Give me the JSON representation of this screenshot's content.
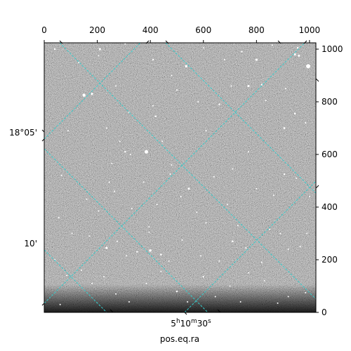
{
  "chart_data": {
    "type": "image",
    "image_description_type": "grayscale astronomical star field with celestial coordinate grid overlay",
    "pixel_axes": {
      "top": {
        "ticks": [
          0,
          200,
          400,
          600,
          800,
          1000
        ],
        "labels": [
          "0",
          "200",
          "400",
          "600",
          "800",
          "1000"
        ],
        "xlim": [
          0,
          1024
        ]
      },
      "right": {
        "ticks": [
          0,
          200,
          400,
          600,
          800,
          1000
        ],
        "labels": [
          "0",
          "200",
          "400",
          "600",
          "800",
          "1000"
        ],
        "ylim": [
          0,
          1024
        ]
      }
    },
    "world_axes": {
      "bottom": {
        "label": "pos.eq.ra",
        "ticks": [
          {
            "value_label": "5h10m30s",
            "h": "5",
            "m": "10",
            "s": "30"
          }
        ]
      },
      "left": {
        "ticks": [
          {
            "label": "18°05'"
          },
          {
            "label": "10'"
          }
        ]
      }
    },
    "grid_color": "#33cccc",
    "grid_style": "dashed",
    "image_colormap": "gray",
    "stars": [
      [
        40,
        1000,
        1.2
      ],
      [
        130,
        950,
        1
      ],
      [
        210,
        1000,
        1.5
      ],
      [
        305,
        1020,
        1
      ],
      [
        410,
        960,
        1.2
      ],
      [
        535,
        935,
        1.8
      ],
      [
        600,
        1005,
        1
      ],
      [
        680,
        960,
        1
      ],
      [
        745,
        990,
        1.2
      ],
      [
        800,
        960,
        1.6
      ],
      [
        860,
        1015,
        1
      ],
      [
        945,
        980,
        1.5
      ],
      [
        960,
        975,
        1.5
      ],
      [
        995,
        935,
        3
      ],
      [
        150,
        825,
        2.2
      ],
      [
        180,
        830,
        1.6
      ],
      [
        270,
        860,
        1
      ],
      [
        320,
        760,
        1
      ],
      [
        410,
        785,
        1
      ],
      [
        420,
        745,
        1.3
      ],
      [
        480,
        900,
        1
      ],
      [
        500,
        845,
        1
      ],
      [
        580,
        800,
        1
      ],
      [
        660,
        790,
        1.2
      ],
      [
        705,
        860,
        1
      ],
      [
        770,
        860,
        1.6
      ],
      [
        820,
        865,
        1.2
      ],
      [
        910,
        850,
        1
      ],
      [
        945,
        755,
        1.3
      ],
      [
        985,
        720,
        1
      ],
      [
        905,
        700,
        1.4
      ],
      [
        835,
        805,
        1
      ],
      [
        610,
        690,
        1
      ],
      [
        385,
        610,
        2.5
      ],
      [
        305,
        610,
        1.2
      ],
      [
        325,
        600,
        1
      ],
      [
        285,
        650,
        1
      ],
      [
        235,
        700,
        1
      ],
      [
        90,
        690,
        1
      ],
      [
        65,
        520,
        1
      ],
      [
        160,
        430,
        1
      ],
      [
        205,
        385,
        1
      ],
      [
        245,
        495,
        1
      ],
      [
        265,
        460,
        1
      ],
      [
        330,
        395,
        1
      ],
      [
        375,
        495,
        1
      ],
      [
        425,
        410,
        1
      ],
      [
        475,
        525,
        1
      ],
      [
        515,
        440,
        1
      ],
      [
        545,
        470,
        1.5
      ],
      [
        480,
        560,
        1
      ],
      [
        640,
        515,
        1
      ],
      [
        710,
        545,
        1
      ],
      [
        770,
        610,
        1
      ],
      [
        800,
        470,
        1
      ],
      [
        865,
        445,
        1
      ],
      [
        905,
        525,
        1.2
      ],
      [
        950,
        510,
        1
      ],
      [
        1000,
        440,
        1
      ],
      [
        55,
        360,
        1
      ],
      [
        105,
        300,
        1
      ],
      [
        170,
        290,
        1
      ],
      [
        235,
        245,
        1.6
      ],
      [
        275,
        270,
        1
      ],
      [
        310,
        215,
        1
      ],
      [
        350,
        230,
        1.2
      ],
      [
        400,
        235,
        1.8
      ],
      [
        440,
        220,
        1.3
      ],
      [
        470,
        195,
        1
      ],
      [
        520,
        275,
        1
      ],
      [
        590,
        215,
        1
      ],
      [
        660,
        195,
        1
      ],
      [
        710,
        270,
        1.3
      ],
      [
        760,
        245,
        1
      ],
      [
        820,
        190,
        1
      ],
      [
        850,
        315,
        1
      ],
      [
        890,
        300,
        1
      ],
      [
        920,
        240,
        1
      ],
      [
        965,
        250,
        1
      ],
      [
        990,
        300,
        1
      ],
      [
        830,
        120,
        1
      ],
      [
        880,
        35,
        1
      ],
      [
        920,
        60,
        1
      ],
      [
        985,
        75,
        1
      ],
      [
        40,
        200,
        1
      ],
      [
        85,
        140,
        1
      ],
      [
        140,
        160,
        1
      ],
      [
        180,
        110,
        1
      ],
      [
        225,
        135,
        1
      ],
      [
        270,
        70,
        1
      ],
      [
        320,
        40,
        1
      ],
      [
        385,
        110,
        1
      ],
      [
        440,
        155,
        1
      ],
      [
        500,
        80,
        1.3
      ],
      [
        540,
        40,
        1
      ],
      [
        600,
        135,
        1.2
      ],
      [
        645,
        60,
        1
      ],
      [
        700,
        100,
        1
      ],
      [
        740,
        40,
        1
      ],
      [
        770,
        150,
        1
      ],
      [
        60,
        30,
        1
      ],
      [
        395,
        305,
        1
      ],
      [
        395,
        325,
        1
      ],
      [
        575,
        380,
        1
      ],
      [
        610,
        340,
        1
      ],
      [
        690,
        410,
        1
      ],
      [
        730,
        330,
        1
      ],
      [
        255,
        565,
        1
      ],
      [
        445,
        650,
        1
      ],
      [
        205,
        975,
        1
      ],
      [
        955,
        1005,
        1.2
      ]
    ]
  }
}
